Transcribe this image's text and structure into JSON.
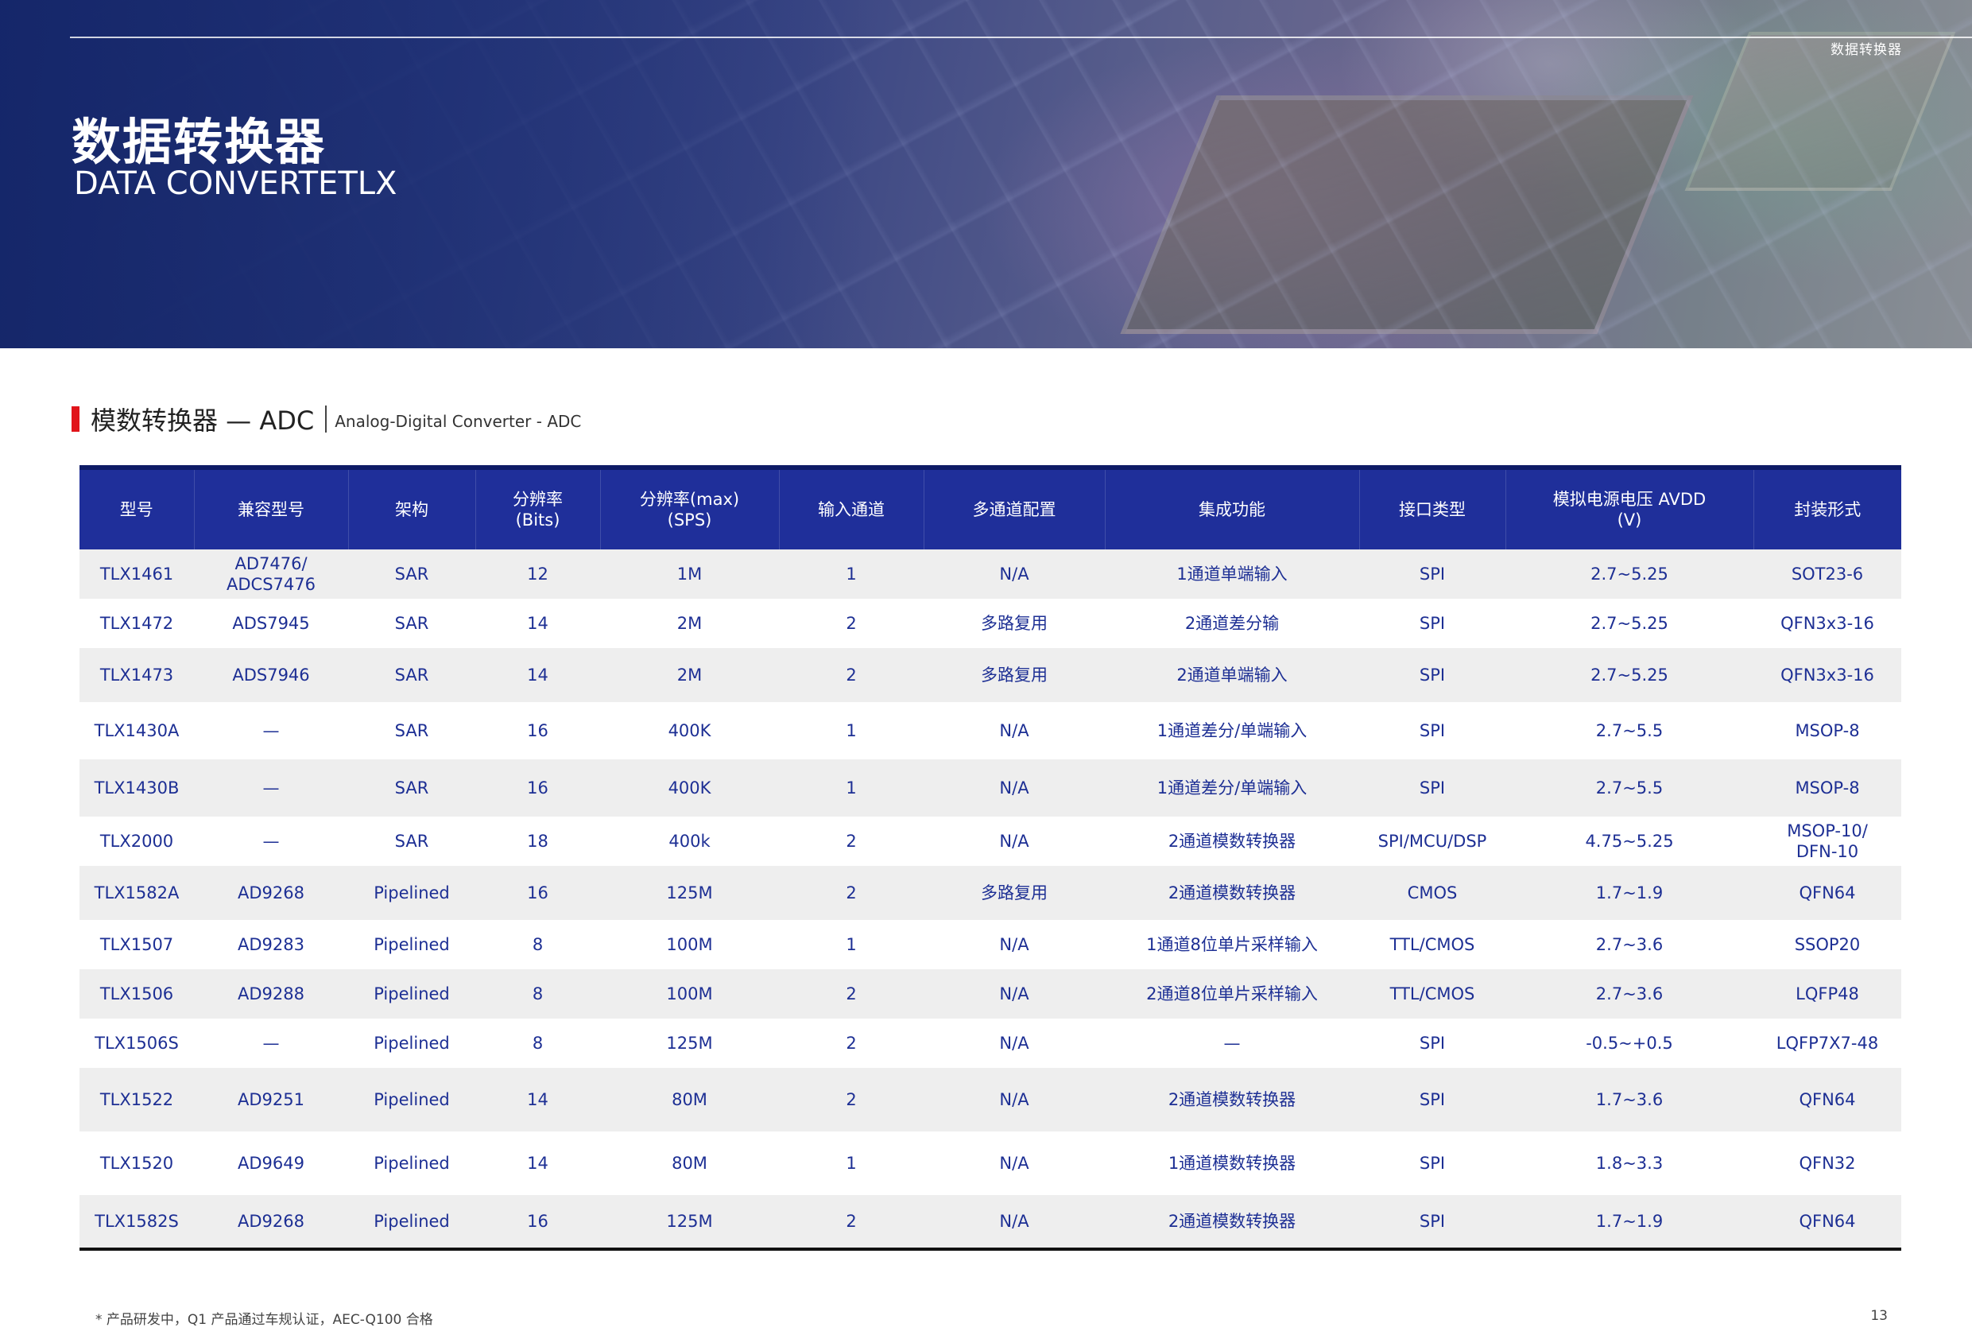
{
  "header": {
    "section_tag": "数据转换器",
    "title_cn": "数据转换器",
    "title_en": "DATA CONVERTETLX"
  },
  "section": {
    "title_cn": "模数转换器 — ADC",
    "title_en": "Analog-Digital Converter - ADC",
    "accent_color": "#e1141a"
  },
  "table": {
    "header_color": "#1f2f9a",
    "text_color": "#1d2f94",
    "columns": [
      "型号",
      "兼容型号",
      "架构",
      "分辨率\n(Bits)",
      "分辨率(max)\n(SPS)",
      "输入通道",
      "多通道配置",
      "集成功能",
      "接口类型",
      "模拟电源电压 AVDD\n(V)",
      "封装形式"
    ],
    "rows": [
      [
        "TLX1461",
        "AD7476/\nADCS7476",
        "SAR",
        "12",
        "1M",
        "1",
        "N/A",
        "1通道单端输入",
        "SPI",
        "2.7~5.25",
        "SOT23-6"
      ],
      [
        "TLX1472",
        "ADS7945",
        "SAR",
        "14",
        "2M",
        "2",
        "多路复用",
        "2通道差分输",
        "SPI",
        "2.7~5.25",
        "QFN3x3-16"
      ],
      [
        "TLX1473",
        "ADS7946",
        "SAR",
        "14",
        "2M",
        "2",
        "多路复用",
        "2通道单端输入",
        "SPI",
        "2.7~5.25",
        "QFN3x3-16"
      ],
      [
        "TLX1430A",
        "—",
        "SAR",
        "16",
        "400K",
        "1",
        "N/A",
        "1通道差分/单端输入",
        "SPI",
        "2.7~5.5",
        "MSOP-8"
      ],
      [
        "TLX1430B",
        "—",
        "SAR",
        "16",
        "400K",
        "1",
        "N/A",
        "1通道差分/单端输入",
        "SPI",
        "2.7~5.5",
        "MSOP-8"
      ],
      [
        "TLX2000",
        "—",
        "SAR",
        "18",
        "400k",
        "2",
        "N/A",
        "2通道模数转换器",
        "SPI/MCU/DSP",
        "4.75~5.25",
        "MSOP-10/\nDFN-10"
      ],
      [
        "TLX1582A",
        "AD9268",
        "Pipelined",
        "16",
        "125M",
        "2",
        "多路复用",
        "2通道模数转换器",
        "CMOS",
        "1.7~1.9",
        "QFN64"
      ],
      [
        "TLX1507",
        "AD9283",
        "Pipelined",
        "8",
        "100M",
        "1",
        "N/A",
        "1通道8位单片采样输入",
        "TTL/CMOS",
        "2.7~3.6",
        "SSOP20"
      ],
      [
        "TLX1506",
        "AD9288",
        "Pipelined",
        "8",
        "100M",
        "2",
        "N/A",
        "2通道8位单片采样输入",
        "TTL/CMOS",
        "2.7~3.6",
        "LQFP48"
      ],
      [
        "TLX1506S",
        "—",
        "Pipelined",
        "8",
        "125M",
        "2",
        "N/A",
        "—",
        "SPI",
        "-0.5~+0.5",
        "LQFP7X7-48"
      ],
      [
        "TLX1522",
        "AD9251",
        "Pipelined",
        "14",
        "80M",
        "2",
        "N/A",
        "2通道模数转换器",
        "SPI",
        "1.7~3.6",
        "QFN64"
      ],
      [
        "TLX1520",
        "AD9649",
        "Pipelined",
        "14",
        "80M",
        "1",
        "N/A",
        "1通道模数转换器",
        "SPI",
        "1.8~3.3",
        "QFN32"
      ],
      [
        "TLX1582S",
        "AD9268",
        "Pipelined",
        "16",
        "125M",
        "2",
        "N/A",
        "2通道模数转换器",
        "SPI",
        "1.7~1.9",
        "QFN64"
      ]
    ]
  },
  "footer": {
    "note": "* 产品研发中，Q1 产品通过车规认证，AEC-Q100 合格",
    "page_number": "13"
  }
}
